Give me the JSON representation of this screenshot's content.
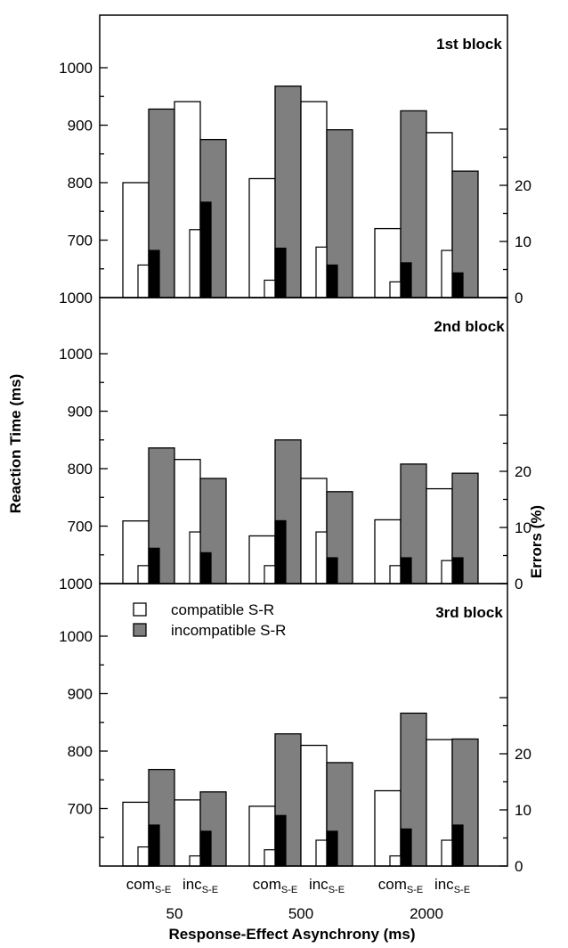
{
  "chart_data": {
    "type": "bar",
    "xlabel": "Response-Effect Asynchrony (ms)",
    "ylabel_left": "Reaction Time (ms)",
    "ylabel_right": "Errors (%)",
    "left_axis_ticks": [
      "1000",
      "900",
      "800",
      "700"
    ],
    "right_axis_ticks": [
      "20",
      "10",
      "0"
    ],
    "rt_ylim": [
      600,
      1000
    ],
    "err_ylim": [
      0,
      30
    ],
    "condition_labels": [
      {
        "main": "com",
        "sub": "S-E"
      },
      {
        "main": "inc",
        "sub": "S-E"
      }
    ],
    "asynchronies": [
      "50",
      "500",
      "2000"
    ],
    "legend": [
      {
        "label": "compatible S-R",
        "color": "#ffffff"
      },
      {
        "label": "incompatible S-R",
        "color": "#7f7f7f"
      }
    ],
    "colors": {
      "rt_compatible": "#ffffff",
      "rt_incompatible": "#7f7f7f",
      "err_compatible": "#ffffff",
      "err_incompatible": "#000000"
    },
    "blocks": [
      {
        "label": "1st block",
        "rt_compatible": [
          800,
          941,
          807,
          941,
          720,
          887
        ],
        "rt_incompatible": [
          928,
          875,
          968,
          892,
          925,
          820
        ],
        "err_compatible": [
          5.8,
          12.1,
          3.1,
          9.0,
          2.8,
          8.4
        ],
        "err_incompatible": [
          8.4,
          17.0,
          8.8,
          5.8,
          6.2,
          4.4
        ]
      },
      {
        "label": "2nd block",
        "rt_compatible": [
          709,
          816,
          683,
          783,
          711,
          765
        ],
        "rt_incompatible": [
          836,
          783,
          850,
          760,
          808,
          792
        ],
        "err_compatible": [
          3.2,
          9.2,
          3.2,
          9.2,
          3.2,
          4.1
        ],
        "err_incompatible": [
          6.3,
          5.5,
          11.2,
          4.6,
          4.6,
          4.6
        ]
      },
      {
        "label": "3rd block",
        "rt_compatible": [
          711,
          715,
          704,
          810,
          731,
          820
        ],
        "rt_incompatible": [
          768,
          729,
          830,
          780,
          866,
          821
        ],
        "err_compatible": [
          3.4,
          1.8,
          2.9,
          4.6,
          1.8,
          4.6
        ],
        "err_incompatible": [
          7.3,
          6.2,
          9.0,
          6.2,
          6.6,
          7.3
        ]
      }
    ]
  }
}
